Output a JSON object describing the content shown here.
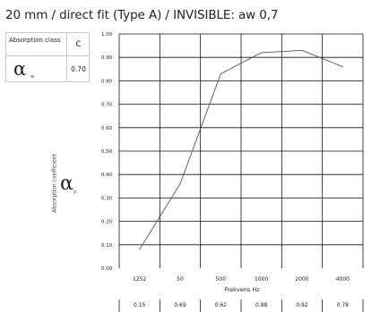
{
  "title": "20 mm / direct fit (Type A) / INVISIBLE: aw 0,7",
  "rating_box": {
    "class_label": "Absorption class",
    "class_value": "C",
    "alpha_symbol": "α",
    "alpha_subscript": "w",
    "alpha_value": "0.70"
  },
  "ylabel_symbol": "α",
  "ylabel_subscript": "p",
  "colors": {
    "grid": "#111111",
    "line": "#555555",
    "text": "#222222"
  },
  "chart_data": {
    "type": "line",
    "x": [
      "125",
      "250",
      "500",
      "1000",
      "2000",
      "4000"
    ],
    "categories": [
      "1252",
      "50",
      "500",
      "1000",
      "2000",
      "4000"
    ],
    "values": [
      0.08,
      0.36,
      0.83,
      0.92,
      0.93,
      0.86
    ],
    "practical_values": [
      "0.15",
      "0.69",
      "0.62",
      "0.88",
      "0.92",
      "0.78"
    ],
    "y_ticks": [
      "0.00",
      "0.10",
      "0.20",
      "0.30",
      "0.40",
      "0.50",
      "0.60",
      "0.70",
      "0.80",
      "0.90",
      "1.00"
    ],
    "xlabel": "Frekvens Hz",
    "ylabel": "Absorption coefficient",
    "ylim": [
      0,
      1
    ],
    "grid": true,
    "legend": "none"
  }
}
